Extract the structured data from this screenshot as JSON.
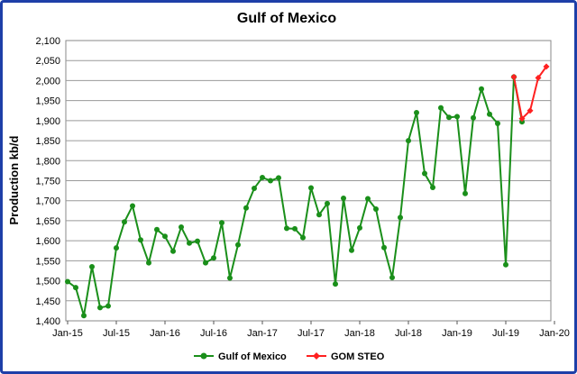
{
  "chart_data": {
    "type": "line",
    "title": "Gulf of Mexico",
    "ylabel": "Production kb/d",
    "xlabel": "",
    "ylim": [
      1400,
      2100
    ],
    "y_ticks": [
      "1,400",
      "1,450",
      "1,500",
      "1,550",
      "1,600",
      "1,650",
      "1,700",
      "1,750",
      "1,800",
      "1,850",
      "1,900",
      "1,950",
      "2,000",
      "2,050",
      "2,100"
    ],
    "x_ticks": [
      "Jan-15",
      "Jul-15",
      "Jan-16",
      "Jul-16",
      "Jan-17",
      "Jul-17",
      "Jan-18",
      "Jul-18",
      "Jan-19",
      "Jul-19",
      "Jan-20"
    ],
    "grid": true,
    "legend_position": "bottom",
    "series": [
      {
        "name": "Gulf of Mexico",
        "color": "#1a8f1a",
        "marker": "circle",
        "x": [
          "2015-01",
          "2015-02",
          "2015-03",
          "2015-04",
          "2015-05",
          "2015-06",
          "2015-07",
          "2015-08",
          "2015-09",
          "2015-10",
          "2015-11",
          "2015-12",
          "2016-01",
          "2016-02",
          "2016-03",
          "2016-04",
          "2016-05",
          "2016-06",
          "2016-07",
          "2016-08",
          "2016-09",
          "2016-10",
          "2016-11",
          "2016-12",
          "2017-01",
          "2017-02",
          "2017-03",
          "2017-04",
          "2017-05",
          "2017-06",
          "2017-07",
          "2017-08",
          "2017-09",
          "2017-10",
          "2017-11",
          "2017-12",
          "2018-01",
          "2018-02",
          "2018-03",
          "2018-04",
          "2018-05",
          "2018-06",
          "2018-07",
          "2018-08",
          "2018-09",
          "2018-10",
          "2018-11",
          "2018-12",
          "2019-01",
          "2019-02",
          "2019-03",
          "2019-04",
          "2019-05",
          "2019-06",
          "2019-07",
          "2019-08",
          "2019-09"
        ],
        "values": [
          1498,
          1483,
          1413,
          1535,
          1433,
          1437,
          1582,
          1647,
          1687,
          1602,
          1545,
          1628,
          1611,
          1574,
          1634,
          1594,
          1599,
          1545,
          1557,
          1645,
          1507,
          1590,
          1682,
          1731,
          1758,
          1750,
          1757,
          1631,
          1630,
          1608,
          1732,
          1665,
          1693,
          1492,
          1706,
          1576,
          1632,
          1705,
          1679,
          1583,
          1508,
          1658,
          1850,
          1920,
          1768,
          1733,
          1932,
          1908,
          1910,
          1718,
          1907,
          1979,
          1916,
          1893,
          1540,
          2009,
          1897
        ]
      },
      {
        "name": "GOM STEO",
        "color": "#ff2020",
        "marker": "diamond",
        "x": [
          "2019-08",
          "2019-09",
          "2019-10",
          "2019-11",
          "2019-12"
        ],
        "values": [
          2009,
          1905,
          1925,
          2007,
          2035
        ]
      }
    ]
  }
}
